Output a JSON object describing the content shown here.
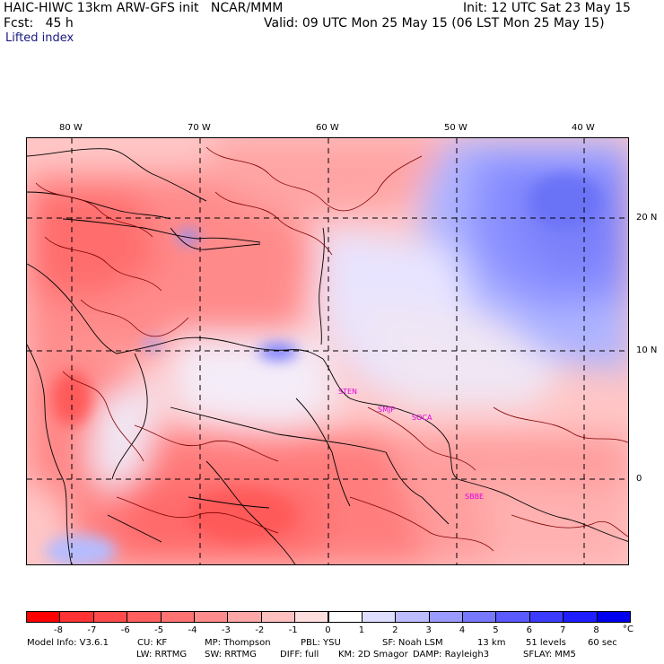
{
  "header": {
    "line1_left": "HAIC-HIWC 13km ARW-GFS init   NCAR/MMM",
    "line1_right": "Init: 12 UTC Sat 23 May 15",
    "line2_left": "Fcst:   45 h",
    "line2_right": "Valid: 09 UTC Mon 25 May 15 (06 LST Mon 25 May 15)",
    "field_name": "Lifted index"
  },
  "axes": {
    "lon_labels": [
      "80 W",
      "70 W",
      "60 W",
      "50 W",
      "40 W"
    ],
    "lat_labels": [
      "20 N",
      "10 N",
      "0"
    ]
  },
  "cities": [
    "STEN",
    "SMJP",
    "SOCA",
    "SBBE"
  ],
  "colorbar": {
    "unit": "°C",
    "ticks": [
      "-8",
      "-7",
      "-6",
      "-5",
      "-4",
      "-3",
      "-2",
      "-1",
      "0",
      "1",
      "2",
      "3",
      "4",
      "5",
      "6",
      "7",
      "8"
    ],
    "colors": [
      "#ff0000",
      "#ff3333",
      "#ff4b4b",
      "#ff5f5f",
      "#ff7373",
      "#ff8c8c",
      "#ffa6a6",
      "#ffc0c0",
      "#ffdede",
      "#ffffff",
      "#dedeff",
      "#bcbcff",
      "#9a9aff",
      "#7878ff",
      "#5a5aff",
      "#3c3cff",
      "#1e1eff",
      "#0000ee"
    ]
  },
  "model_info": {
    "line1": [
      "Model Info: V3.6.1",
      "CU: KF",
      "MP: Thompson",
      "PBL: YSU",
      "SF: Noah LSM",
      "13 km",
      "51 levels",
      "60 sec"
    ],
    "line2": [
      "LW: RRTMG",
      "SW: RRTMG",
      "DIFF: full",
      "KM: 2D Smagor",
      "DAMP: Rayleigh3",
      "SFLAY: MM5"
    ]
  }
}
